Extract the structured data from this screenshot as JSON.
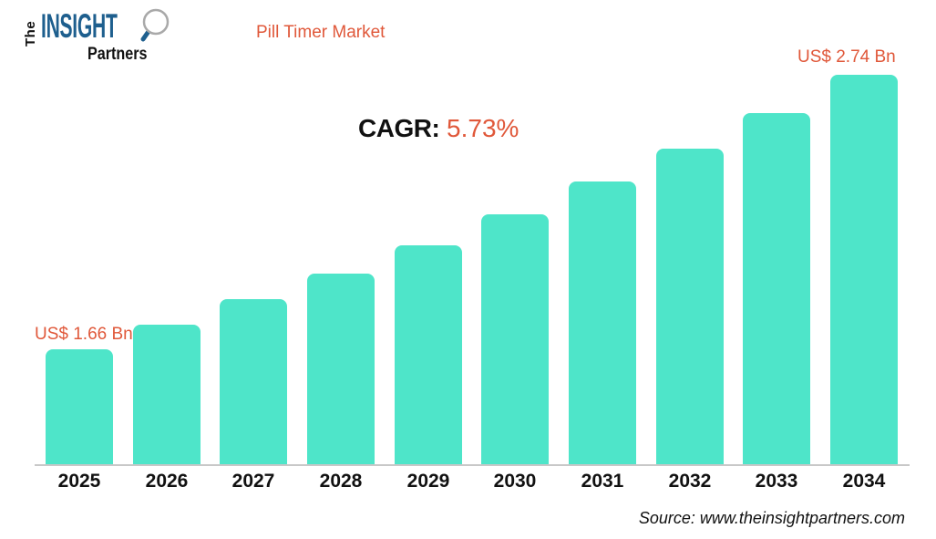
{
  "brand": {
    "logo_the": "The",
    "logo_insight": "INSIGHT",
    "logo_partners": "Partners"
  },
  "header": {
    "title": "Pill Timer Market"
  },
  "cagr": {
    "label": "CAGR:",
    "value": "5.73%"
  },
  "annotations": {
    "first_bar_label": "US$ 1.66 Bn",
    "last_bar_label": "US$ 2.74 Bn"
  },
  "footer": {
    "source": "Source: www.theinsightpartners.com"
  },
  "icons": {
    "logo_magnifier": "magnifier"
  },
  "colors": {
    "bar": "#4EE5C9",
    "accent_orange": "#E0583A",
    "logo_blue": "#1E5F8E",
    "axis_line": "#C8C8C8",
    "text_black": "#111111"
  },
  "chart_data": {
    "type": "bar",
    "title": "Pill Timer Market",
    "categories": [
      "2025",
      "2026",
      "2027",
      "2028",
      "2029",
      "2030",
      "2031",
      "2032",
      "2033",
      "2034"
    ],
    "values": [
      1.66,
      1.76,
      1.86,
      1.96,
      2.07,
      2.19,
      2.32,
      2.45,
      2.59,
      2.74
    ],
    "unit": "US$ Bn",
    "cagr_percent": 5.73,
    "xlabel": "",
    "ylabel": "",
    "ylim": [
      1.21,
      2.74
    ],
    "grid": false,
    "legend": false,
    "first_value_label": "US$ 1.66 Bn",
    "last_value_label": "US$ 2.74 Bn"
  }
}
